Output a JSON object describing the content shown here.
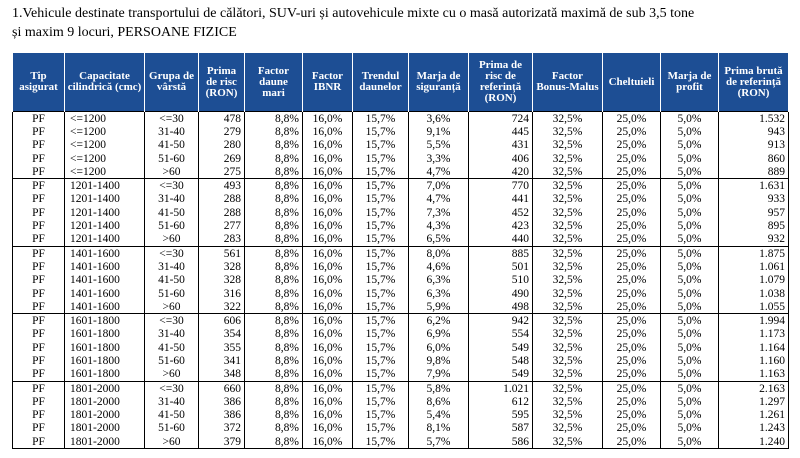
{
  "title": "1.Vehicule destinate transportului de călători, SUV-uri și autovehicule mixte cu o masă autorizată maximă de sub 3,5 tone și maxim 9 locuri, PERSOANE FIZICE",
  "columns": [
    "Tip asigurat",
    "Capacitate cilindrică (cmc)",
    "Grupa de vârstă",
    "Prima de risc (RON)",
    "Factor daune mari",
    "Factor IBNR",
    "Trendul daunelor",
    "Marja de siguranță",
    "Prima de risc de referință (RON)",
    "Factor Bonus-Malus",
    "Cheltuieli",
    "Marja de profit",
    "Prima brută de referință (RON)"
  ],
  "groups": [
    {
      "rows": [
        [
          "PF",
          "<=1200",
          "<=30",
          "478",
          "8,8%",
          "16,0%",
          "15,7%",
          "3,6%",
          "724",
          "32,5%",
          "25,0%",
          "5,0%",
          "1.532"
        ],
        [
          "PF",
          "<=1200",
          "31-40",
          "279",
          "8,8%",
          "16,0%",
          "15,7%",
          "9,1%",
          "445",
          "32,5%",
          "25,0%",
          "5,0%",
          "943"
        ],
        [
          "PF",
          "<=1200",
          "41-50",
          "280",
          "8,8%",
          "16,0%",
          "15,7%",
          "5,5%",
          "431",
          "32,5%",
          "25,0%",
          "5,0%",
          "913"
        ],
        [
          "PF",
          "<=1200",
          "51-60",
          "269",
          "8,8%",
          "16,0%",
          "15,7%",
          "3,3%",
          "406",
          "32,5%",
          "25,0%",
          "5,0%",
          "860"
        ],
        [
          "PF",
          "<=1200",
          ">60",
          "275",
          "8,8%",
          "16,0%",
          "15,7%",
          "4,7%",
          "420",
          "32,5%",
          "25,0%",
          "5,0%",
          "889"
        ]
      ]
    },
    {
      "rows": [
        [
          "PF",
          "1201-1400",
          "<=30",
          "493",
          "8,8%",
          "16,0%",
          "15,7%",
          "7,0%",
          "770",
          "32,5%",
          "25,0%",
          "5,0%",
          "1.631"
        ],
        [
          "PF",
          "1201-1400",
          "31-40",
          "288",
          "8,8%",
          "16,0%",
          "15,7%",
          "4,7%",
          "441",
          "32,5%",
          "25,0%",
          "5,0%",
          "933"
        ],
        [
          "PF",
          "1201-1400",
          "41-50",
          "288",
          "8,8%",
          "16,0%",
          "15,7%",
          "7,3%",
          "452",
          "32,5%",
          "25,0%",
          "5,0%",
          "957"
        ],
        [
          "PF",
          "1201-1400",
          "51-60",
          "277",
          "8,8%",
          "16,0%",
          "15,7%",
          "4,3%",
          "423",
          "32,5%",
          "25,0%",
          "5,0%",
          "895"
        ],
        [
          "PF",
          "1201-1400",
          ">60",
          "283",
          "8,8%",
          "16,0%",
          "15,7%",
          "6,5%",
          "440",
          "32,5%",
          "25,0%",
          "5,0%",
          "932"
        ]
      ]
    },
    {
      "rows": [
        [
          "PF",
          "1401-1600",
          "<=30",
          "561",
          "8,8%",
          "16,0%",
          "15,7%",
          "8,0%",
          "885",
          "32,5%",
          "25,0%",
          "5,0%",
          "1.875"
        ],
        [
          "PF",
          "1401-1600",
          "31-40",
          "328",
          "8,8%",
          "16,0%",
          "15,7%",
          "4,6%",
          "501",
          "32,5%",
          "25,0%",
          "5,0%",
          "1.061"
        ],
        [
          "PF",
          "1401-1600",
          "41-50",
          "328",
          "8,8%",
          "16,0%",
          "15,7%",
          "6,3%",
          "510",
          "32,5%",
          "25,0%",
          "5,0%",
          "1.079"
        ],
        [
          "PF",
          "1401-1600",
          "51-60",
          "316",
          "8,8%",
          "16,0%",
          "15,7%",
          "6,3%",
          "490",
          "32,5%",
          "25,0%",
          "5,0%",
          "1.038"
        ],
        [
          "PF",
          "1401-1600",
          ">60",
          "322",
          "8,8%",
          "16,0%",
          "15,7%",
          "5,9%",
          "498",
          "32,5%",
          "25,0%",
          "5,0%",
          "1.055"
        ]
      ]
    },
    {
      "rows": [
        [
          "PF",
          "1601-1800",
          "<=30",
          "606",
          "8,8%",
          "16,0%",
          "15,7%",
          "6,2%",
          "942",
          "32,5%",
          "25,0%",
          "5,0%",
          "1.994"
        ],
        [
          "PF",
          "1601-1800",
          "31-40",
          "354",
          "8,8%",
          "16,0%",
          "15,7%",
          "6,9%",
          "554",
          "32,5%",
          "25,0%",
          "5,0%",
          "1.173"
        ],
        [
          "PF",
          "1601-1800",
          "41-50",
          "355",
          "8,8%",
          "16,0%",
          "15,7%",
          "6,0%",
          "549",
          "32,5%",
          "25,0%",
          "5,0%",
          "1.164"
        ],
        [
          "PF",
          "1601-1800",
          "51-60",
          "341",
          "8,8%",
          "16,0%",
          "15,7%",
          "9,8%",
          "548",
          "32,5%",
          "25,0%",
          "5,0%",
          "1.160"
        ],
        [
          "PF",
          "1601-1800",
          ">60",
          "348",
          "8,8%",
          "16,0%",
          "15,7%",
          "7,9%",
          "549",
          "32,5%",
          "25,0%",
          "5,0%",
          "1.163"
        ]
      ]
    },
    {
      "rows": [
        [
          "PF",
          "1801-2000",
          "<=30",
          "660",
          "8,8%",
          "16,0%",
          "15,7%",
          "5,8%",
          "1.021",
          "32,5%",
          "25,0%",
          "5,0%",
          "2.163"
        ],
        [
          "PF",
          "1801-2000",
          "31-40",
          "386",
          "8,8%",
          "16,0%",
          "15,7%",
          "8,6%",
          "612",
          "32,5%",
          "25,0%",
          "5,0%",
          "1.297"
        ],
        [
          "PF",
          "1801-2000",
          "41-50",
          "386",
          "8,8%",
          "16,0%",
          "15,7%",
          "5,4%",
          "595",
          "32,5%",
          "25,0%",
          "5,0%",
          "1.261"
        ],
        [
          "PF",
          "1801-2000",
          "51-60",
          "372",
          "8,8%",
          "16,0%",
          "15,7%",
          "8,1%",
          "587",
          "32,5%",
          "25,0%",
          "5,0%",
          "1.243"
        ],
        [
          "PF",
          "1801-2000",
          ">60",
          "379",
          "8,8%",
          "16,0%",
          "15,7%",
          "5,7%",
          "586",
          "32,5%",
          "25,0%",
          "5,0%",
          "1.240"
        ]
      ]
    }
  ]
}
